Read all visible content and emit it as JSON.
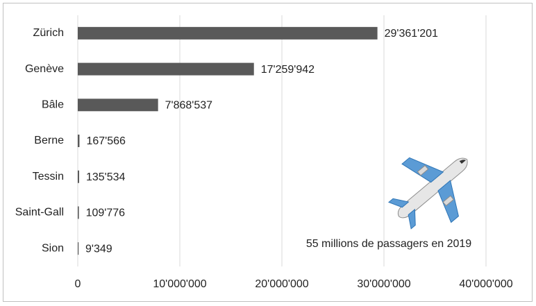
{
  "chart_data": {
    "type": "bar",
    "orientation": "horizontal",
    "categories": [
      "Zürich",
      "Genève",
      "Bâle",
      "Berne",
      "Tessin",
      "Saint-Gall",
      "Sion"
    ],
    "values": [
      29361201,
      17259942,
      7868537,
      167566,
      135534,
      109776,
      9349
    ],
    "value_labels": [
      "29'361'201",
      "17'259'942",
      "7'868'537",
      "167'566",
      "135'534",
      "109'776",
      "9'349"
    ],
    "color": "#595959",
    "xlim": [
      0,
      40000000
    ],
    "xticks": [
      0,
      {
        "value": 10000000,
        "label": "10'000'000"
      },
      {
        "value": 20000000,
        "label": "20'000'000"
      },
      {
        "value": 30000000,
        "label": "30'000'000"
      },
      {
        "value": 40000000,
        "label": "40'000'000"
      }
    ],
    "grid": true,
    "annotation": "55 millions de passagers en 2019"
  }
}
